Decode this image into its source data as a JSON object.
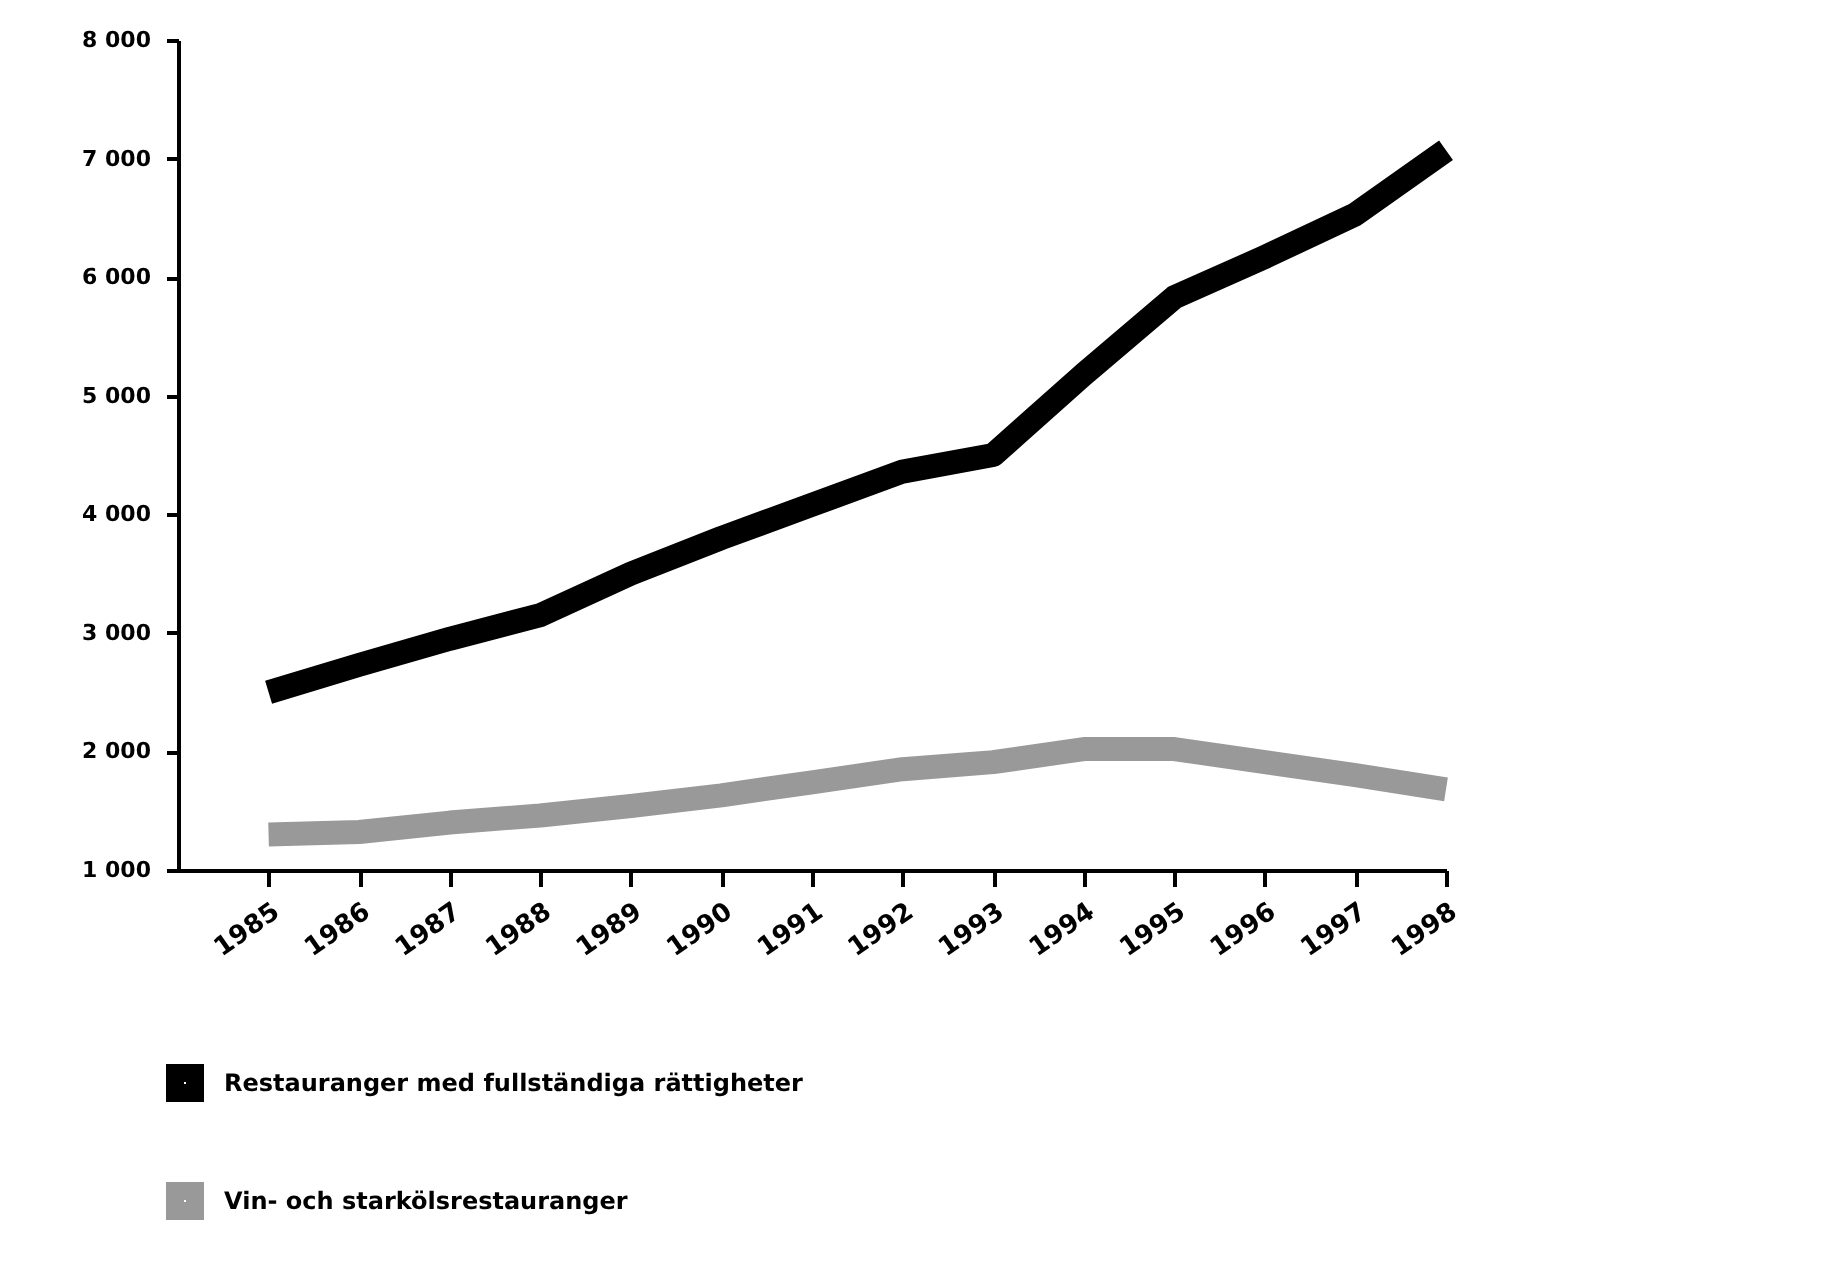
{
  "chart_data": {
    "type": "line",
    "categories": [
      "1985",
      "1986",
      "1987",
      "1988",
      "1989",
      "1990",
      "1991",
      "1992",
      "1993",
      "1994",
      "1995",
      "1996",
      "1997",
      "1998"
    ],
    "series": [
      {
        "name": "Restauranger med fullständiga rättigheter",
        "color": "#000000",
        "values": [
          2500,
          2730,
          2950,
          3150,
          3500,
          3800,
          4080,
          4360,
          4500,
          5180,
          5830,
          6170,
          6530,
          7070
        ]
      },
      {
        "name": "Vin- och starkölsrestauranger",
        "color": "#999999",
        "values": [
          1300,
          1320,
          1400,
          1460,
          1540,
          1630,
          1740,
          1850,
          1910,
          2020,
          2020,
          1910,
          1800,
          1680
        ]
      }
    ],
    "ylim": [
      1000,
      8000
    ],
    "yticks": [
      {
        "value": 1000,
        "label": "1 000"
      },
      {
        "value": 2000,
        "label": "2 000"
      },
      {
        "value": 3000,
        "label": "3 000"
      },
      {
        "value": 4000,
        "label": "4 000"
      },
      {
        "value": 5000,
        "label": "5 000"
      },
      {
        "value": 6000,
        "label": "6 000"
      },
      {
        "value": 7000,
        "label": "7 000"
      },
      {
        "value": 8000,
        "label": "8 000"
      }
    ],
    "grid": false,
    "legend": "bottom left",
    "marker": "none",
    "line_style": "solid"
  }
}
